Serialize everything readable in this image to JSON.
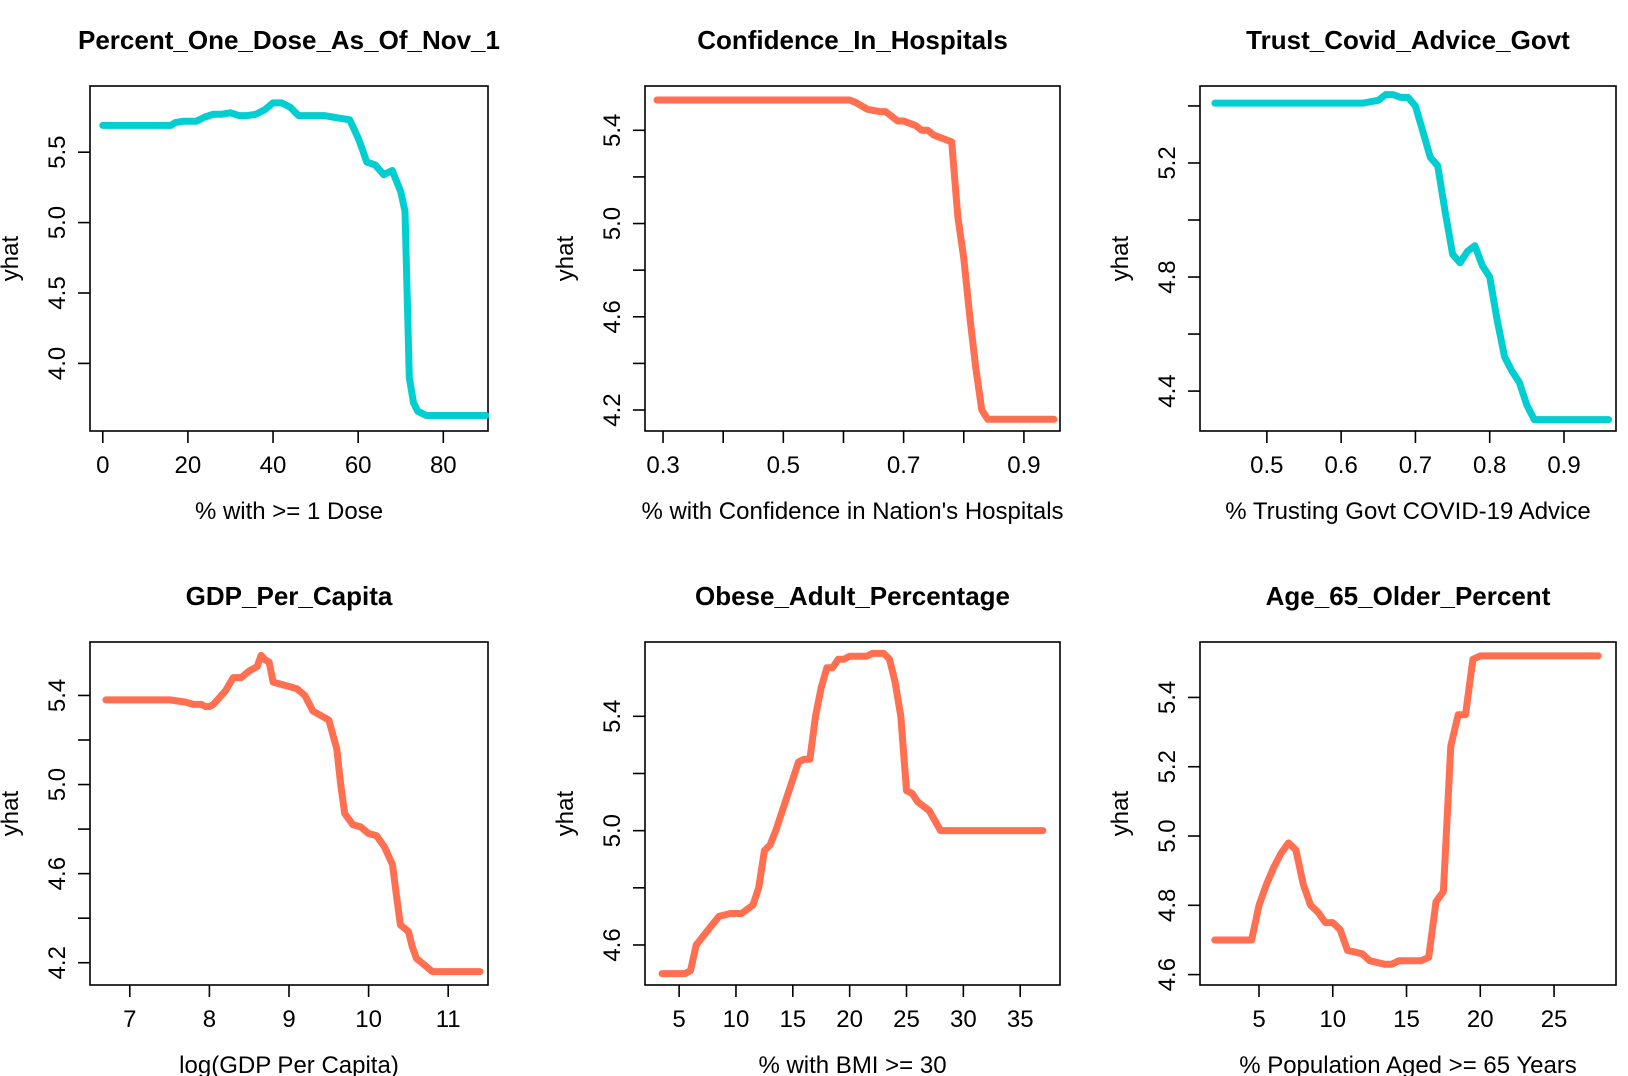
{
  "chart_data": [
    {
      "type": "line",
      "title": "Percent_One_Dose_As_Of_Nov_1",
      "xlabel": "% with >= 1 Dose",
      "ylabel": "yhat",
      "xlim": [
        -3,
        90.5
      ],
      "ylim": [
        3.52,
        5.97
      ],
      "xticks": [
        0,
        20,
        40,
        60,
        80
      ],
      "xtick_labels": [
        "0",
        "20",
        "40",
        "60",
        "80"
      ],
      "yticks": [
        4.0,
        4.5,
        5.0,
        5.5
      ],
      "ytick_labels": [
        "4.0",
        "4.5",
        "5.0",
        "5.5"
      ],
      "color": "#00CED1",
      "x": [
        0,
        4,
        8,
        12,
        16,
        17,
        19,
        22,
        24,
        26,
        28,
        30,
        32,
        34,
        36,
        38,
        40,
        42,
        44,
        46,
        48,
        50,
        52,
        54,
        56,
        58,
        60,
        61,
        62,
        64,
        66,
        68,
        70,
        71,
        72,
        73,
        74,
        76,
        78,
        80,
        84,
        90
      ],
      "y": [
        5.69,
        5.69,
        5.69,
        5.69,
        5.69,
        5.71,
        5.72,
        5.72,
        5.75,
        5.77,
        5.77,
        5.78,
        5.76,
        5.76,
        5.77,
        5.8,
        5.85,
        5.85,
        5.82,
        5.76,
        5.76,
        5.76,
        5.76,
        5.75,
        5.74,
        5.73,
        5.6,
        5.52,
        5.43,
        5.41,
        5.34,
        5.37,
        5.22,
        5.08,
        3.9,
        3.72,
        3.66,
        3.63,
        3.63,
        3.63,
        3.63,
        3.63
      ]
    },
    {
      "type": "line",
      "title": "Confidence_In_Hospitals",
      "xlabel": "% with Confidence in Nation's Hospitals",
      "ylabel": "yhat",
      "xlim": [
        0.27,
        0.96
      ],
      "ylim": [
        4.11,
        5.59
      ],
      "xticks": [
        0.3,
        0.4,
        0.5,
        0.6,
        0.7,
        0.8,
        0.9
      ],
      "xtick_labels": [
        "0.3",
        "",
        "0.5",
        "",
        "0.7",
        "",
        "0.9"
      ],
      "yticks": [
        4.2,
        4.4,
        4.6,
        4.8,
        5.0,
        5.2,
        5.4
      ],
      "ytick_labels": [
        "4.2",
        "",
        "4.6",
        "",
        "5.0",
        "",
        "5.4"
      ],
      "color": "#FF6F50",
      "x": [
        0.29,
        0.35,
        0.4,
        0.45,
        0.5,
        0.55,
        0.6,
        0.61,
        0.62,
        0.64,
        0.66,
        0.67,
        0.68,
        0.69,
        0.7,
        0.71,
        0.72,
        0.73,
        0.74,
        0.75,
        0.76,
        0.77,
        0.78,
        0.79,
        0.8,
        0.81,
        0.82,
        0.83,
        0.84,
        0.85,
        0.86,
        0.9,
        0.95
      ],
      "y": [
        5.53,
        5.53,
        5.53,
        5.53,
        5.53,
        5.53,
        5.53,
        5.53,
        5.52,
        5.49,
        5.48,
        5.48,
        5.46,
        5.44,
        5.44,
        5.43,
        5.42,
        5.4,
        5.4,
        5.38,
        5.37,
        5.36,
        5.35,
        5.03,
        4.85,
        4.6,
        4.38,
        4.2,
        4.16,
        4.16,
        4.16,
        4.16,
        4.16
      ]
    },
    {
      "type": "line",
      "title": "Trust_Covid_Advice_Govt",
      "xlabel": "% Trusting Govt COVID-19 Advice",
      "ylabel": "yhat",
      "xlim": [
        0.41,
        0.97
      ],
      "ylim": [
        4.26,
        5.47
      ],
      "xticks": [
        0.5,
        0.6,
        0.7,
        0.8,
        0.9
      ],
      "xtick_labels": [
        "0.5",
        "0.6",
        "0.7",
        "0.8",
        "0.9"
      ],
      "yticks": [
        4.4,
        4.6,
        4.8,
        5.0,
        5.2,
        5.4
      ],
      "ytick_labels": [
        "4.4",
        "",
        "4.8",
        "",
        "5.2",
        ""
      ],
      "color": "#00CED1",
      "x": [
        0.43,
        0.5,
        0.55,
        0.6,
        0.63,
        0.65,
        0.66,
        0.67,
        0.68,
        0.69,
        0.7,
        0.71,
        0.72,
        0.73,
        0.74,
        0.75,
        0.76,
        0.77,
        0.78,
        0.79,
        0.8,
        0.81,
        0.82,
        0.83,
        0.84,
        0.85,
        0.86,
        0.87,
        0.9,
        0.96
      ],
      "y": [
        5.41,
        5.41,
        5.41,
        5.41,
        5.41,
        5.42,
        5.44,
        5.44,
        5.43,
        5.43,
        5.4,
        5.31,
        5.22,
        5.19,
        5.03,
        4.88,
        4.85,
        4.89,
        4.91,
        4.84,
        4.8,
        4.65,
        4.52,
        4.47,
        4.43,
        4.35,
        4.3,
        4.3,
        4.3,
        4.3
      ]
    },
    {
      "type": "line",
      "title": "GDP_Per_Capita",
      "xlabel": "log(GDP Per Capita)",
      "ylabel": "yhat",
      "xlim": [
        6.5,
        11.5
      ],
      "ylim": [
        4.1,
        5.64
      ],
      "xticks": [
        7,
        8,
        9,
        10,
        11
      ],
      "xtick_labels": [
        "7",
        "8",
        "9",
        "10",
        "11"
      ],
      "yticks": [
        4.2,
        4.4,
        4.6,
        4.8,
        5.0,
        5.2,
        5.4
      ],
      "ytick_labels": [
        "4.2",
        "",
        "4.6",
        "",
        "5.0",
        "",
        "5.4"
      ],
      "color": "#FF6F50",
      "x": [
        6.7,
        7.0,
        7.3,
        7.5,
        7.7,
        7.8,
        7.9,
        7.95,
        8.0,
        8.05,
        8.1,
        8.2,
        8.3,
        8.4,
        8.5,
        8.6,
        8.65,
        8.7,
        8.75,
        8.8,
        8.9,
        9.0,
        9.1,
        9.2,
        9.3,
        9.4,
        9.5,
        9.6,
        9.65,
        9.7,
        9.8,
        9.9,
        10.0,
        10.1,
        10.2,
        10.3,
        10.35,
        10.4,
        10.5,
        10.55,
        10.6,
        10.8,
        11.0,
        11.4
      ],
      "y": [
        5.38,
        5.38,
        5.38,
        5.38,
        5.37,
        5.36,
        5.36,
        5.35,
        5.35,
        5.36,
        5.38,
        5.42,
        5.48,
        5.48,
        5.51,
        5.53,
        5.58,
        5.56,
        5.55,
        5.46,
        5.45,
        5.44,
        5.43,
        5.4,
        5.33,
        5.31,
        5.29,
        5.16,
        5.0,
        4.87,
        4.82,
        4.81,
        4.78,
        4.77,
        4.72,
        4.64,
        4.5,
        4.37,
        4.34,
        4.27,
        4.22,
        4.16,
        4.16,
        4.16
      ]
    },
    {
      "type": "line",
      "title": "Obese_Adult_Percentage",
      "xlabel": "% with BMI >= 30",
      "ylabel": "yhat",
      "xlim": [
        2,
        38.5
      ],
      "ylim": [
        4.46,
        5.66
      ],
      "xticks": [
        5,
        10,
        15,
        20,
        25,
        30,
        35
      ],
      "xtick_labels": [
        "5",
        "10",
        "15",
        "20",
        "25",
        "30",
        "35"
      ],
      "yticks": [
        4.6,
        4.8,
        5.0,
        5.2,
        5.4
      ],
      "ytick_labels": [
        "4.6",
        "",
        "5.0",
        "",
        "5.4"
      ],
      "color": "#FF6F50",
      "x": [
        3.5,
        5.5,
        6.0,
        6.5,
        7.5,
        8.5,
        9.5,
        10.5,
        11.5,
        12.0,
        12.5,
        13.0,
        13.5,
        14.5,
        15.5,
        16.0,
        16.5,
        17.0,
        17.5,
        18.0,
        18.5,
        19.0,
        19.5,
        20.0,
        20.5,
        21.0,
        21.5,
        22.0,
        22.5,
        23.0,
        23.5,
        24.0,
        24.5,
        25.0,
        25.5,
        26.0,
        27.0,
        28.0,
        30.0,
        33.0,
        37.0
      ],
      "y": [
        4.5,
        4.5,
        4.51,
        4.6,
        4.65,
        4.7,
        4.71,
        4.71,
        4.74,
        4.8,
        4.93,
        4.95,
        5.0,
        5.12,
        5.24,
        5.25,
        5.25,
        5.4,
        5.5,
        5.57,
        5.57,
        5.6,
        5.6,
        5.61,
        5.61,
        5.61,
        5.61,
        5.62,
        5.62,
        5.62,
        5.6,
        5.52,
        5.4,
        5.14,
        5.13,
        5.1,
        5.07,
        5.0,
        5.0,
        5.0,
        5.0
      ]
    },
    {
      "type": "line",
      "title": "Age_65_Older_Percent",
      "xlabel": "% Population Aged >= 65 Years",
      "ylabel": "yhat",
      "xlim": [
        1,
        29.2
      ],
      "ylim": [
        4.57,
        5.56
      ],
      "xticks": [
        5,
        10,
        15,
        20,
        25
      ],
      "xtick_labels": [
        "5",
        "10",
        "15",
        "20",
        "25"
      ],
      "yticks": [
        4.6,
        4.8,
        5.0,
        5.2,
        5.4
      ],
      "ytick_labels": [
        "4.6",
        "4.8",
        "5.0",
        "5.2",
        "5.4"
      ],
      "color": "#FF6F50",
      "x": [
        2.0,
        3.5,
        4.5,
        5.0,
        5.5,
        6.0,
        6.5,
        7.0,
        7.5,
        8.0,
        8.5,
        9.0,
        9.5,
        10.0,
        10.5,
        11.0,
        12.0,
        12.5,
        13.5,
        14.0,
        14.5,
        15.0,
        15.5,
        16.0,
        16.5,
        17.0,
        17.5,
        18.0,
        18.5,
        19.0,
        19.5,
        20.0,
        21.0,
        24.0,
        28.0
      ],
      "y": [
        4.7,
        4.7,
        4.7,
        4.8,
        4.86,
        4.91,
        4.95,
        4.98,
        4.96,
        4.86,
        4.8,
        4.78,
        4.75,
        4.75,
        4.73,
        4.67,
        4.66,
        4.64,
        4.63,
        4.63,
        4.64,
        4.64,
        4.64,
        4.64,
        4.65,
        4.81,
        4.84,
        5.26,
        5.35,
        5.35,
        5.51,
        5.52,
        5.52,
        5.52,
        5.52
      ]
    }
  ]
}
